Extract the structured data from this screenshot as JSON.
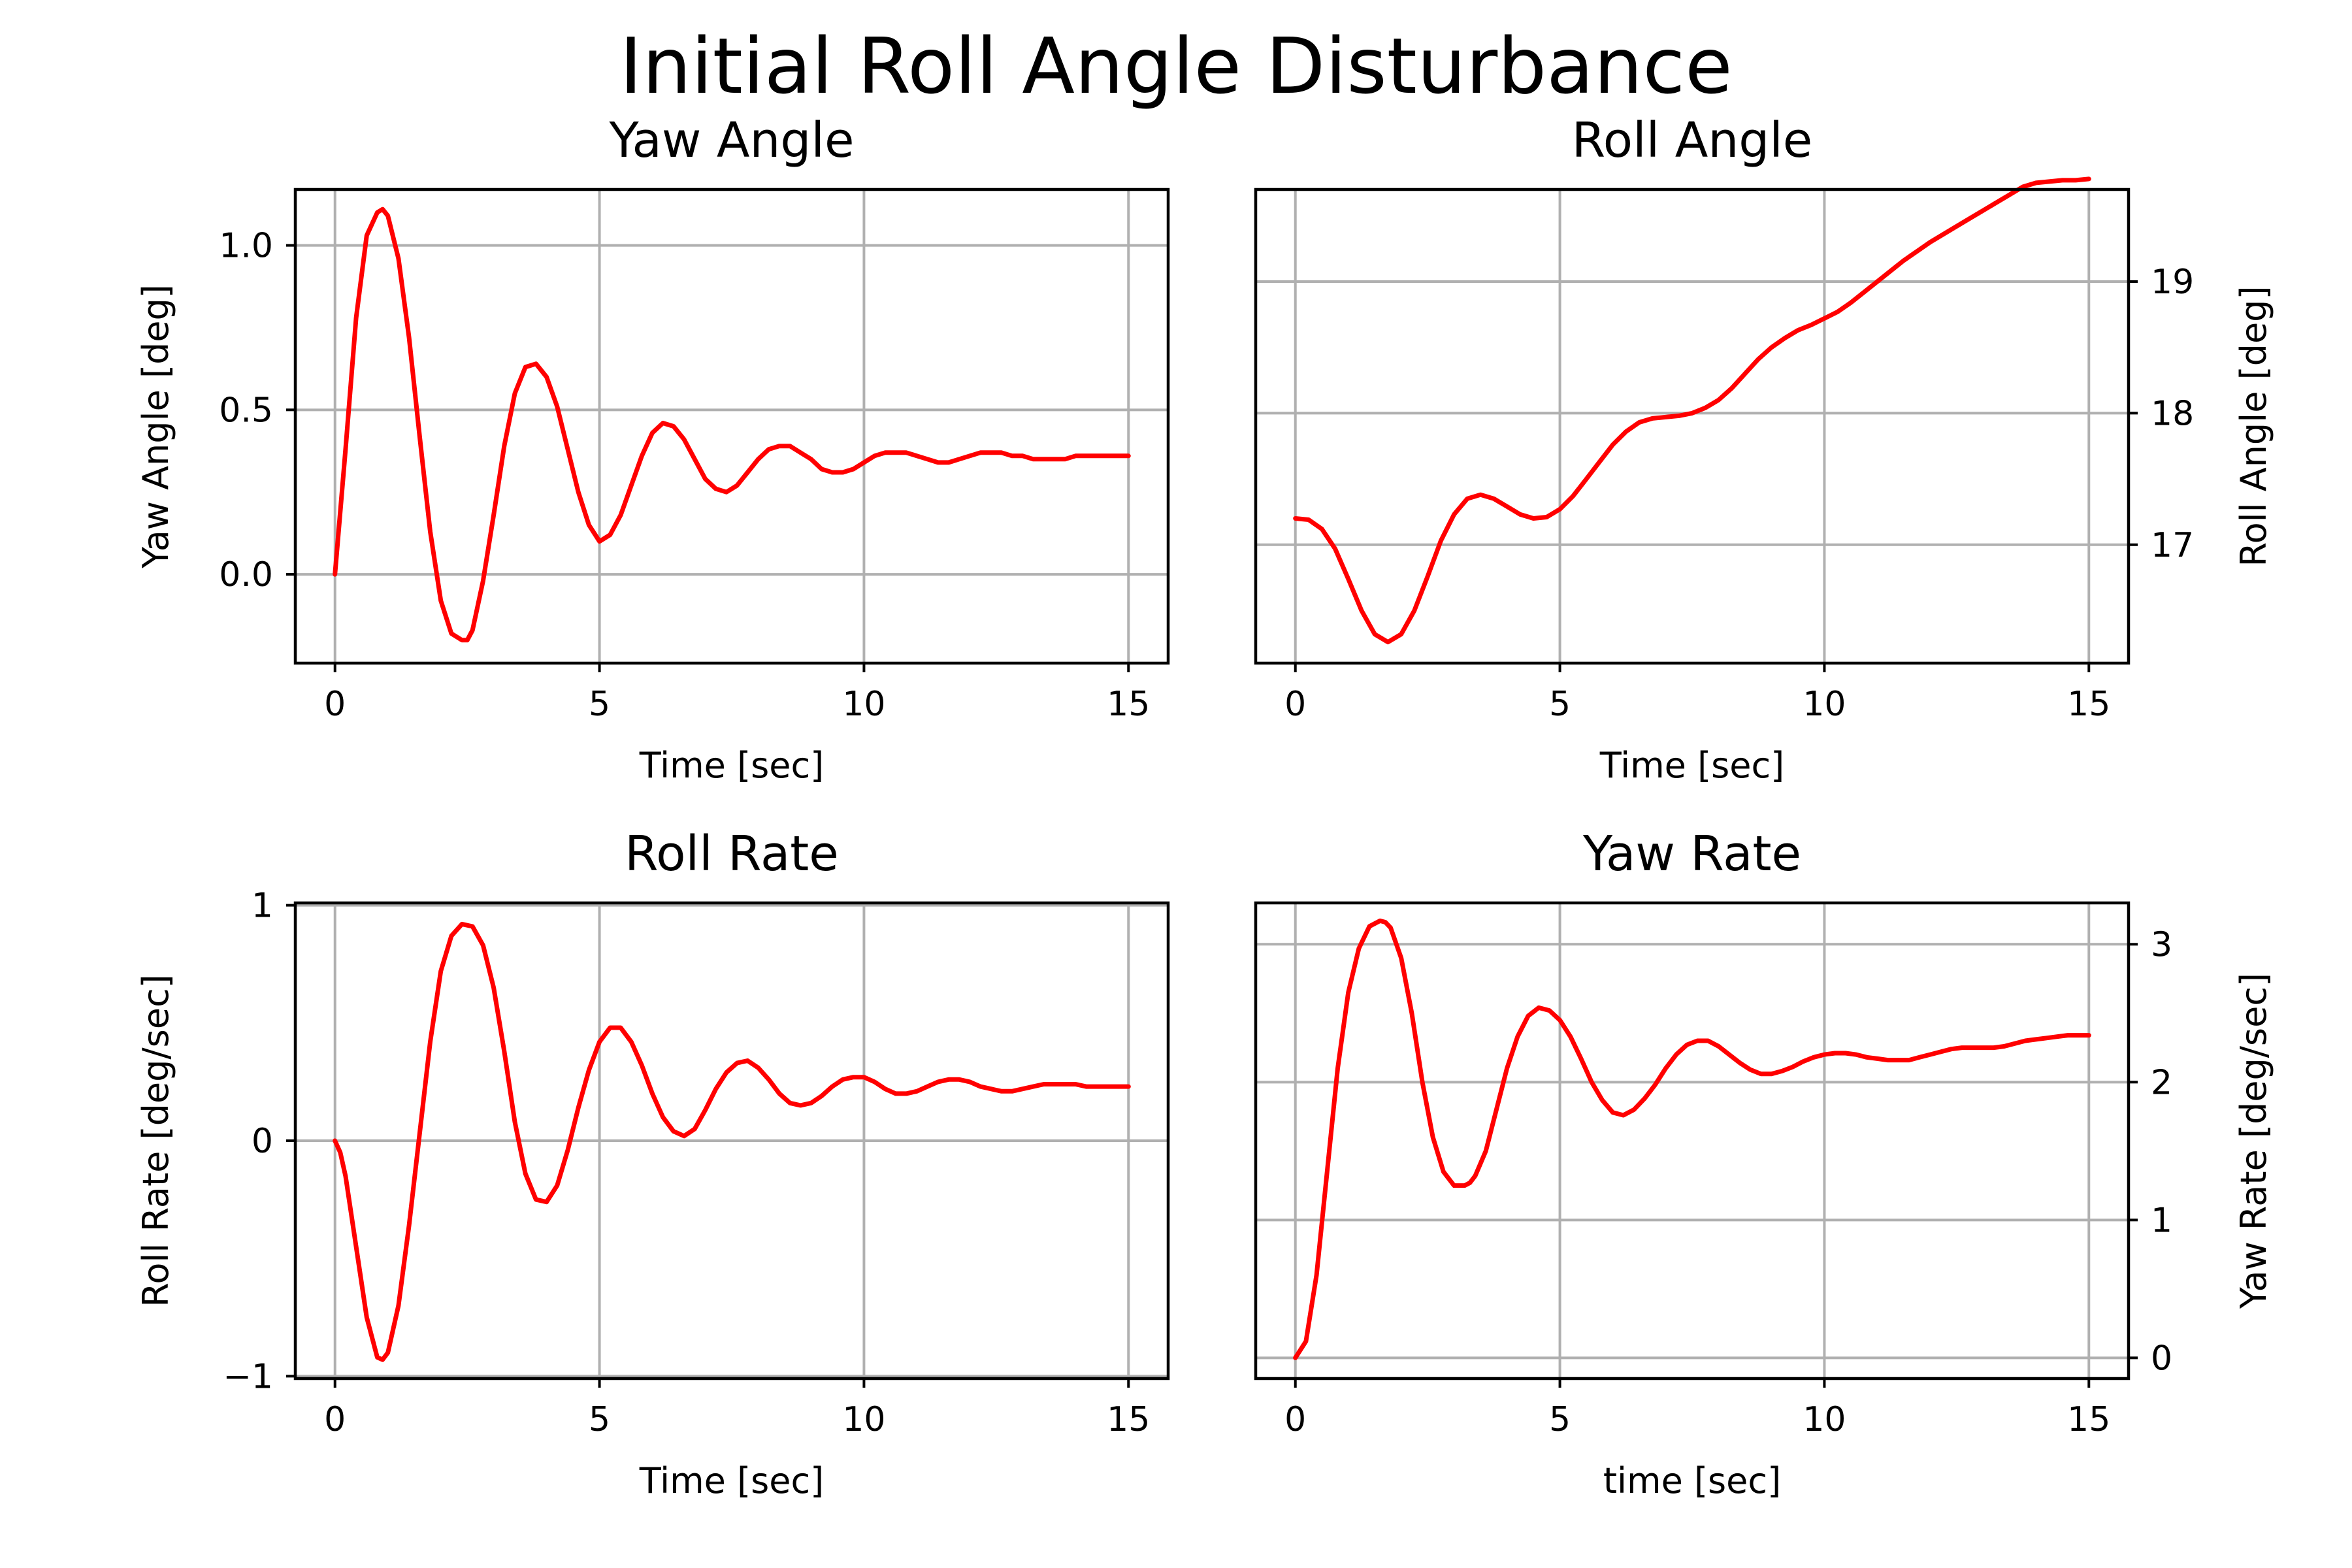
{
  "figure": {
    "title": "Initial Roll Angle Disturbance"
  },
  "chart_data": [
    {
      "type": "line",
      "title": "Yaw Angle",
      "xlabel": "Time [sec]",
      "ylabel": "Yaw Angle [deg]",
      "ylabel_side": "left",
      "xlim": [
        -0.75,
        15.75
      ],
      "ylim": [
        -0.27,
        1.17
      ],
      "xticks": [
        0,
        5,
        10,
        15
      ],
      "xtick_labels": [
        "0",
        "5",
        "10",
        "15"
      ],
      "yticks": [
        0,
        0.5,
        1.0
      ],
      "ytick_labels": [
        "0.0",
        "0.5",
        "1.0"
      ],
      "grid": true,
      "line_color": "#ff0000",
      "series": [
        {
          "x": [
            0,
            0.2,
            0.4,
            0.6,
            0.8,
            0.9,
            1.0,
            1.2,
            1.4,
            1.6,
            1.8,
            2.0,
            2.2,
            2.4,
            2.5,
            2.6,
            2.8,
            3.0,
            3.2,
            3.4,
            3.6,
            3.8,
            4.0,
            4.2,
            4.4,
            4.6,
            4.8,
            5.0,
            5.2,
            5.4,
            5.6,
            5.8,
            6.0,
            6.2,
            6.4,
            6.6,
            6.8,
            7.0,
            7.2,
            7.4,
            7.6,
            7.8,
            8.0,
            8.2,
            8.4,
            8.6,
            8.8,
            9.0,
            9.2,
            9.4,
            9.6,
            9.8,
            10.0,
            10.2,
            10.4,
            10.6,
            10.8,
            11.0,
            11.2,
            11.4,
            11.6,
            11.8,
            12.0,
            12.2,
            12.4,
            12.6,
            12.8,
            13.0,
            13.2,
            13.4,
            13.6,
            13.8,
            14.0,
            14.2,
            14.4,
            14.6,
            14.8,
            15.0
          ],
          "y": [
            0.0,
            0.38,
            0.78,
            1.03,
            1.1,
            1.11,
            1.09,
            0.96,
            0.72,
            0.42,
            0.13,
            -0.08,
            -0.18,
            -0.2,
            -0.2,
            -0.17,
            -0.02,
            0.18,
            0.39,
            0.55,
            0.63,
            0.64,
            0.6,
            0.51,
            0.38,
            0.25,
            0.15,
            0.1,
            0.12,
            0.18,
            0.27,
            0.36,
            0.43,
            0.46,
            0.45,
            0.41,
            0.35,
            0.29,
            0.26,
            0.25,
            0.27,
            0.31,
            0.35,
            0.38,
            0.39,
            0.39,
            0.37,
            0.35,
            0.32,
            0.31,
            0.31,
            0.32,
            0.34,
            0.36,
            0.37,
            0.37,
            0.37,
            0.36,
            0.35,
            0.34,
            0.34,
            0.35,
            0.36,
            0.37,
            0.37,
            0.37,
            0.36,
            0.36,
            0.35,
            0.35,
            0.35,
            0.35,
            0.36,
            0.36,
            0.36,
            0.36,
            0.36,
            0.36
          ]
        }
      ]
    },
    {
      "type": "line",
      "title": "Roll Angle",
      "xlabel": "Time [sec]",
      "ylabel": "Roll Angle [deg]",
      "ylabel_side": "right",
      "xlim": [
        -0.75,
        15.75
      ],
      "ylim": [
        16.1,
        19.7
      ],
      "xticks": [
        0,
        5,
        10,
        15
      ],
      "xtick_labels": [
        "0",
        "5",
        "10",
        "15"
      ],
      "yticks": [
        17,
        18,
        19
      ],
      "ytick_labels": [
        "17",
        "18",
        "19"
      ],
      "grid": true,
      "line_color": "#ff0000",
      "series": [
        {
          "x": [
            0,
            0.25,
            0.5,
            0.75,
            1.0,
            1.25,
            1.5,
            1.75,
            2.0,
            2.25,
            2.5,
            2.75,
            3.0,
            3.25,
            3.5,
            3.75,
            4.0,
            4.25,
            4.5,
            4.75,
            5.0,
            5.25,
            5.5,
            5.75,
            6.0,
            6.25,
            6.5,
            6.75,
            7.0,
            7.25,
            7.5,
            7.75,
            8.0,
            8.25,
            8.5,
            8.75,
            9.0,
            9.25,
            9.5,
            9.75,
            10.0,
            10.25,
            10.5,
            10.75,
            11.0,
            11.25,
            11.5,
            11.75,
            12.0,
            12.25,
            12.5,
            12.75,
            13.0,
            13.25,
            13.5,
            13.75,
            14.0,
            14.25,
            14.5,
            14.75,
            15.0
          ],
          "y": [
            17.2,
            17.19,
            17.12,
            16.97,
            16.74,
            16.5,
            16.32,
            16.26,
            16.32,
            16.5,
            16.76,
            17.03,
            17.23,
            17.35,
            17.38,
            17.35,
            17.29,
            17.23,
            17.2,
            17.21,
            17.27,
            17.37,
            17.5,
            17.63,
            17.76,
            17.86,
            17.93,
            17.96,
            17.97,
            17.98,
            18.0,
            18.04,
            18.1,
            18.19,
            18.3,
            18.41,
            18.5,
            18.57,
            18.63,
            18.67,
            18.72,
            18.77,
            18.84,
            18.92,
            19.0,
            19.08,
            19.16,
            19.23,
            19.3,
            19.36,
            19.42,
            19.48,
            19.54,
            19.6,
            19.66,
            19.72,
            19.75,
            19.76,
            19.77,
            19.77,
            19.78
          ]
        }
      ]
    },
    {
      "type": "line",
      "title": "Roll Rate",
      "xlabel": "Time [sec]",
      "ylabel": "Roll Rate [deg/sec]",
      "ylabel_side": "left",
      "xlim": [
        -0.75,
        15.75
      ],
      "ylim": [
        -1.01,
        1.01
      ],
      "xticks": [
        0,
        5,
        10,
        15
      ],
      "xtick_labels": [
        "0",
        "5",
        "10",
        "15"
      ],
      "yticks": [
        -1,
        0,
        1
      ],
      "ytick_labels": [
        "−1",
        "0",
        "1"
      ],
      "grid": true,
      "line_color": "#ff0000",
      "series": [
        {
          "x": [
            0,
            0.1,
            0.2,
            0.4,
            0.6,
            0.8,
            0.9,
            1.0,
            1.2,
            1.4,
            1.6,
            1.8,
            2.0,
            2.2,
            2.4,
            2.6,
            2.8,
            3.0,
            3.2,
            3.4,
            3.6,
            3.8,
            4.0,
            4.2,
            4.4,
            4.6,
            4.8,
            5.0,
            5.2,
            5.4,
            5.6,
            5.8,
            6.0,
            6.2,
            6.4,
            6.6,
            6.8,
            7.0,
            7.2,
            7.4,
            7.6,
            7.8,
            8.0,
            8.2,
            8.4,
            8.6,
            8.8,
            9.0,
            9.2,
            9.4,
            9.6,
            9.8,
            10.0,
            10.2,
            10.4,
            10.6,
            10.8,
            11.0,
            11.2,
            11.4,
            11.6,
            11.8,
            12.0,
            12.2,
            12.4,
            12.6,
            12.8,
            13.0,
            13.2,
            13.4,
            13.6,
            13.8,
            14.0,
            14.2,
            14.4,
            14.6,
            14.8,
            15.0
          ],
          "y": [
            0.0,
            -0.05,
            -0.15,
            -0.45,
            -0.75,
            -0.92,
            -0.93,
            -0.9,
            -0.7,
            -0.36,
            0.03,
            0.42,
            0.72,
            0.87,
            0.92,
            0.91,
            0.83,
            0.65,
            0.38,
            0.08,
            -0.14,
            -0.25,
            -0.26,
            -0.19,
            -0.04,
            0.14,
            0.3,
            0.42,
            0.48,
            0.48,
            0.42,
            0.32,
            0.2,
            0.1,
            0.04,
            0.02,
            0.05,
            0.13,
            0.22,
            0.29,
            0.33,
            0.34,
            0.31,
            0.26,
            0.2,
            0.16,
            0.15,
            0.16,
            0.19,
            0.23,
            0.26,
            0.27,
            0.27,
            0.25,
            0.22,
            0.2,
            0.2,
            0.21,
            0.23,
            0.25,
            0.26,
            0.26,
            0.25,
            0.23,
            0.22,
            0.21,
            0.21,
            0.22,
            0.23,
            0.24,
            0.24,
            0.24,
            0.24,
            0.23,
            0.23,
            0.23,
            0.23,
            0.23
          ]
        }
      ]
    },
    {
      "type": "line",
      "title": "Yaw Rate",
      "xlabel": "time [sec]",
      "ylabel": "Yaw Rate [deg/sec]",
      "ylabel_side": "right",
      "xlim": [
        -0.75,
        15.75
      ],
      "ylim": [
        -0.15,
        3.3
      ],
      "xticks": [
        0,
        5,
        10,
        15
      ],
      "xtick_labels": [
        "0",
        "5",
        "10",
        "15"
      ],
      "yticks": [
        0,
        1,
        2,
        3
      ],
      "ytick_labels": [
        "0",
        "1",
        "2",
        "3"
      ],
      "grid": true,
      "line_color": "#ff0000",
      "series": [
        {
          "x": [
            0,
            0.2,
            0.4,
            0.6,
            0.8,
            1.0,
            1.2,
            1.4,
            1.6,
            1.7,
            1.8,
            2.0,
            2.2,
            2.4,
            2.6,
            2.8,
            3.0,
            3.2,
            3.3,
            3.4,
            3.6,
            3.8,
            4.0,
            4.2,
            4.4,
            4.6,
            4.8,
            5.0,
            5.2,
            5.4,
            5.6,
            5.8,
            6.0,
            6.2,
            6.4,
            6.6,
            6.8,
            7.0,
            7.2,
            7.4,
            7.6,
            7.8,
            8.0,
            8.2,
            8.4,
            8.6,
            8.8,
            9.0,
            9.2,
            9.4,
            9.6,
            9.8,
            10.0,
            10.2,
            10.4,
            10.6,
            10.8,
            11.0,
            11.2,
            11.4,
            11.6,
            11.8,
            12.0,
            12.2,
            12.4,
            12.6,
            12.8,
            13.0,
            13.2,
            13.4,
            13.6,
            13.8,
            14.0,
            14.2,
            14.4,
            14.6,
            14.8,
            15.0
          ],
          "y": [
            0.0,
            0.12,
            0.6,
            1.35,
            2.1,
            2.65,
            2.97,
            3.13,
            3.17,
            3.16,
            3.12,
            2.9,
            2.5,
            2.0,
            1.6,
            1.35,
            1.25,
            1.25,
            1.27,
            1.32,
            1.5,
            1.8,
            2.1,
            2.33,
            2.48,
            2.54,
            2.52,
            2.45,
            2.33,
            2.17,
            2.0,
            1.87,
            1.78,
            1.76,
            1.8,
            1.88,
            1.98,
            2.1,
            2.2,
            2.27,
            2.3,
            2.3,
            2.26,
            2.2,
            2.14,
            2.09,
            2.06,
            2.06,
            2.08,
            2.11,
            2.15,
            2.18,
            2.2,
            2.21,
            2.21,
            2.2,
            2.18,
            2.17,
            2.16,
            2.16,
            2.16,
            2.18,
            2.2,
            2.22,
            2.24,
            2.25,
            2.25,
            2.25,
            2.25,
            2.26,
            2.28,
            2.3,
            2.31,
            2.32,
            2.33,
            2.34,
            2.34,
            2.34
          ]
        }
      ]
    }
  ]
}
